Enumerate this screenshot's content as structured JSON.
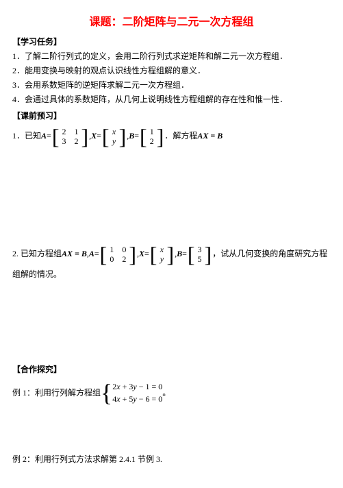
{
  "title": "课题：二阶矩阵与二元一次方程组",
  "sections": {
    "tasks_header": "【学习任务】",
    "tasks": [
      "1．了解二阶行列式的定义，会用二阶行列式求逆矩阵和解二元一次方程组．",
      "2．能用变换与映射的观点认识线性方程组解的意义．",
      "3．会用系数矩阵的逆矩阵求解二元一次方程组．",
      "4．会通过具体的系数矩阵，从几何上说明线性方程组解的存在性和惟一性．"
    ],
    "preview_header": "【课前预习】",
    "q1": {
      "prefix": "1．已知 ",
      "A_label": "A",
      "eq": " = ",
      "A": [
        [
          "2",
          "1"
        ],
        [
          "3",
          "2"
        ]
      ],
      "X_label": "X",
      "X": [
        [
          "x"
        ],
        [
          "y"
        ]
      ],
      "B_label": "B",
      "B": [
        [
          "1"
        ],
        [
          "2"
        ]
      ],
      "suffix_mid": "，",
      "suffix": "．解方程 ",
      "equation": "AX = B"
    },
    "q2": {
      "prefix": "2. 已知方程组 ",
      "eq_text": "AX = B",
      "comma": ", ",
      "A_label": "A",
      "eq": " = ",
      "A": [
        [
          "1",
          "0"
        ],
        [
          "0",
          "2"
        ]
      ],
      "X_label": "X",
      "X": [
        [
          "x"
        ],
        [
          "y"
        ]
      ],
      "B_label": "B",
      "B": [
        [
          "3"
        ],
        [
          "5"
        ]
      ],
      "suffix": "，试从几何变换的角度研究方程",
      "line2": "组解的情况。"
    },
    "hezuo_header": "【合作探究】",
    "ex1": {
      "prefix": "例 1：利用行列解方程组",
      "line1": "2x + 3y − 1 = 0",
      "line2": "4x + 5y − 6 = 0",
      "suffix": "。"
    },
    "ex2": "例 2：利用行列式方法求解第 2.4.1 节例 3."
  },
  "colors": {
    "title": "#ff0000",
    "text": "#000000",
    "background": "#ffffff"
  },
  "fonts": {
    "title_size": 16,
    "body_size": 12,
    "header_family": "SimHei",
    "body_family": "SimSun",
    "math_family": "Times New Roman"
  }
}
